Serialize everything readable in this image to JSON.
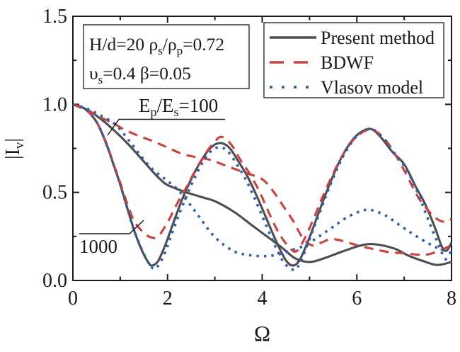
{
  "figure": {
    "xlabel": "Ω",
    "ylabel_parts": "|I_[v]|",
    "annotation_box": {
      "line1": "H/d=20  ρ_[s]/ρ_[p]=0.72",
      "line2": "υ_[s]=0.4  β=0.05"
    },
    "curve_labels": {
      "ep_es_100": "E_[p]/E_[s]=100",
      "ep_es_1000": "1000"
    }
  },
  "legend": {
    "items": [
      {
        "label": "Present method",
        "style": "solid",
        "color": "#4d4d50"
      },
      {
        "label": "BDWF",
        "style": "dashed",
        "color": "#c9423e"
      },
      {
        "label": "Vlasov model",
        "style": "dotted",
        "color": "#3060a8"
      }
    ]
  },
  "colors": {
    "present": "#4d4d50",
    "bdwf": "#c9423e",
    "vlasov": "#3060a8",
    "axis": "#1a1a1a"
  },
  "chart_data": {
    "type": "line",
    "title": "",
    "xlabel": "Ω",
    "ylabel": "|Iv|",
    "xlim": [
      0,
      8
    ],
    "ylim": [
      0,
      1.5
    ],
    "grid": false,
    "legend_position": "top-right-inside",
    "x_major_ticks": [
      0,
      2,
      4,
      6,
      8
    ],
    "x_major_tick_labels": [
      "0",
      "2",
      "4",
      "6",
      "8"
    ],
    "x_minor_ticks": [
      1,
      3,
      5,
      7
    ],
    "y_major_ticks": [
      0,
      0.5,
      1.0,
      1.5
    ],
    "y_major_tick_labels": [
      "0.0",
      "0.5",
      "1.0",
      "1.5"
    ],
    "y_minor_ticks": [
      0.25,
      0.75,
      1.25
    ],
    "series": [
      {
        "name": "Present method",
        "ep_es": "100",
        "style": "solid",
        "color_key": "present",
        "points": [
          [
            0,
            1.0
          ],
          [
            0.3,
            0.97
          ],
          [
            0.6,
            0.915
          ],
          [
            0.9,
            0.845
          ],
          [
            1.2,
            0.765
          ],
          [
            1.5,
            0.675
          ],
          [
            1.75,
            0.6
          ],
          [
            1.95,
            0.55
          ],
          [
            2.1,
            0.53
          ],
          [
            2.4,
            0.5
          ],
          [
            2.7,
            0.475
          ],
          [
            3.0,
            0.45
          ],
          [
            3.4,
            0.39
          ],
          [
            3.8,
            0.31
          ],
          [
            4.1,
            0.25
          ],
          [
            4.4,
            0.19
          ],
          [
            4.7,
            0.125
          ],
          [
            5.0,
            0.105
          ],
          [
            5.3,
            0.125
          ],
          [
            5.7,
            0.165
          ],
          [
            6.1,
            0.2
          ],
          [
            6.4,
            0.205
          ],
          [
            6.8,
            0.18
          ],
          [
            7.1,
            0.14
          ],
          [
            7.4,
            0.11
          ],
          [
            7.7,
            0.088
          ],
          [
            8.0,
            0.105
          ]
        ]
      },
      {
        "name": "Present method",
        "ep_es": "1000",
        "style": "solid",
        "color_key": "present",
        "points": [
          [
            0,
            1.0
          ],
          [
            0.25,
            0.975
          ],
          [
            0.5,
            0.9
          ],
          [
            0.7,
            0.78
          ],
          [
            0.85,
            0.665
          ],
          [
            1.0,
            0.545
          ],
          [
            1.15,
            0.41
          ],
          [
            1.3,
            0.28
          ],
          [
            1.45,
            0.175
          ],
          [
            1.6,
            0.1
          ],
          [
            1.68,
            0.085
          ],
          [
            1.8,
            0.11
          ],
          [
            1.95,
            0.2
          ],
          [
            2.1,
            0.31
          ],
          [
            2.3,
            0.455
          ],
          [
            2.5,
            0.575
          ],
          [
            2.7,
            0.675
          ],
          [
            2.9,
            0.75
          ],
          [
            3.1,
            0.78
          ],
          [
            3.3,
            0.755
          ],
          [
            3.5,
            0.675
          ],
          [
            3.7,
            0.585
          ],
          [
            3.9,
            0.47
          ],
          [
            4.1,
            0.345
          ],
          [
            4.3,
            0.22
          ],
          [
            4.5,
            0.115
          ],
          [
            4.65,
            0.085
          ],
          [
            4.8,
            0.12
          ],
          [
            5.0,
            0.245
          ],
          [
            5.2,
            0.39
          ],
          [
            5.4,
            0.53
          ],
          [
            5.65,
            0.685
          ],
          [
            5.9,
            0.795
          ],
          [
            6.1,
            0.845
          ],
          [
            6.3,
            0.86
          ],
          [
            6.5,
            0.815
          ],
          [
            6.75,
            0.73
          ],
          [
            7.0,
            0.66
          ],
          [
            7.25,
            0.53
          ],
          [
            7.45,
            0.43
          ],
          [
            7.65,
            0.3
          ],
          [
            7.8,
            0.19
          ],
          [
            7.9,
            0.17
          ],
          [
            8.0,
            0.215
          ]
        ]
      },
      {
        "name": "BDWF",
        "ep_es": "100",
        "style": "dashed",
        "color_key": "bdwf",
        "points": [
          [
            0,
            1.0
          ],
          [
            0.3,
            0.965
          ],
          [
            0.6,
            0.925
          ],
          [
            0.9,
            0.885
          ],
          [
            1.1,
            0.855
          ],
          [
            1.4,
            0.82
          ],
          [
            1.7,
            0.79
          ],
          [
            2.0,
            0.755
          ],
          [
            2.3,
            0.72
          ],
          [
            2.6,
            0.7
          ],
          [
            2.9,
            0.685
          ],
          [
            3.2,
            0.655
          ],
          [
            3.6,
            0.615
          ],
          [
            4.0,
            0.575
          ],
          [
            4.25,
            0.5
          ],
          [
            4.45,
            0.42
          ],
          [
            4.65,
            0.34
          ],
          [
            4.85,
            0.245
          ],
          [
            5.05,
            0.2
          ],
          [
            5.25,
            0.215
          ],
          [
            5.45,
            0.235
          ],
          [
            5.7,
            0.225
          ],
          [
            6.0,
            0.2
          ],
          [
            6.35,
            0.178
          ],
          [
            6.7,
            0.16
          ],
          [
            7.0,
            0.155
          ],
          [
            7.3,
            0.146
          ],
          [
            7.5,
            0.148
          ],
          [
            7.75,
            0.17
          ],
          [
            8.0,
            0.2
          ]
        ]
      },
      {
        "name": "BDWF",
        "ep_es": "1000",
        "style": "dashed",
        "color_key": "bdwf",
        "points": [
          [
            0,
            1.0
          ],
          [
            0.25,
            0.975
          ],
          [
            0.5,
            0.9
          ],
          [
            0.7,
            0.785
          ],
          [
            0.85,
            0.67
          ],
          [
            1.0,
            0.555
          ],
          [
            1.15,
            0.435
          ],
          [
            1.3,
            0.335
          ],
          [
            1.5,
            0.27
          ],
          [
            1.65,
            0.245
          ],
          [
            1.8,
            0.25
          ],
          [
            2.0,
            0.33
          ],
          [
            2.2,
            0.435
          ],
          [
            2.4,
            0.53
          ],
          [
            2.6,
            0.63
          ],
          [
            2.8,
            0.72
          ],
          [
            3.0,
            0.79
          ],
          [
            3.15,
            0.815
          ],
          [
            3.35,
            0.77
          ],
          [
            3.55,
            0.68
          ],
          [
            3.75,
            0.6
          ],
          [
            3.95,
            0.5
          ],
          [
            4.15,
            0.38
          ],
          [
            4.35,
            0.27
          ],
          [
            4.55,
            0.195
          ],
          [
            4.72,
            0.165
          ],
          [
            4.9,
            0.24
          ],
          [
            5.1,
            0.36
          ],
          [
            5.3,
            0.49
          ],
          [
            5.55,
            0.635
          ],
          [
            5.8,
            0.755
          ],
          [
            6.05,
            0.83
          ],
          [
            6.3,
            0.855
          ],
          [
            6.55,
            0.815
          ],
          [
            6.8,
            0.72
          ],
          [
            7.05,
            0.6
          ],
          [
            7.3,
            0.47
          ],
          [
            7.55,
            0.385
          ],
          [
            7.75,
            0.34
          ],
          [
            7.9,
            0.335
          ],
          [
            8.0,
            0.35
          ]
        ]
      },
      {
        "name": "Vlasov model",
        "ep_es": "100",
        "style": "dotted",
        "color_key": "vlasov",
        "points": [
          [
            0,
            1.0
          ],
          [
            0.3,
            0.975
          ],
          [
            0.6,
            0.935
          ],
          [
            0.9,
            0.885
          ],
          [
            1.2,
            0.79
          ],
          [
            1.4,
            0.72
          ],
          [
            1.65,
            0.64
          ],
          [
            1.95,
            0.575
          ],
          [
            2.2,
            0.52
          ],
          [
            2.45,
            0.44
          ],
          [
            2.7,
            0.35
          ],
          [
            2.95,
            0.26
          ],
          [
            3.2,
            0.2
          ],
          [
            3.45,
            0.16
          ],
          [
            3.7,
            0.145
          ],
          [
            4.0,
            0.138
          ],
          [
            4.3,
            0.145
          ],
          [
            4.6,
            0.17
          ],
          [
            4.9,
            0.2
          ],
          [
            5.2,
            0.25
          ],
          [
            5.5,
            0.305
          ],
          [
            5.8,
            0.36
          ],
          [
            6.1,
            0.395
          ],
          [
            6.3,
            0.4
          ],
          [
            6.6,
            0.37
          ],
          [
            6.9,
            0.315
          ],
          [
            7.15,
            0.27
          ],
          [
            7.45,
            0.22
          ],
          [
            7.7,
            0.185
          ],
          [
            8.0,
            0.155
          ]
        ]
      },
      {
        "name": "Vlasov model",
        "ep_es": "1000",
        "style": "dotted",
        "color_key": "vlasov",
        "points": [
          [
            0,
            1.0
          ],
          [
            0.25,
            0.975
          ],
          [
            0.5,
            0.9
          ],
          [
            0.7,
            0.78
          ],
          [
            0.85,
            0.665
          ],
          [
            1.0,
            0.545
          ],
          [
            1.15,
            0.41
          ],
          [
            1.3,
            0.28
          ],
          [
            1.5,
            0.15
          ],
          [
            1.65,
            0.08
          ],
          [
            1.75,
            0.068
          ],
          [
            1.9,
            0.13
          ],
          [
            2.05,
            0.235
          ],
          [
            2.25,
            0.38
          ],
          [
            2.45,
            0.51
          ],
          [
            2.65,
            0.625
          ],
          [
            2.85,
            0.715
          ],
          [
            3.05,
            0.755
          ],
          [
            3.25,
            0.74
          ],
          [
            3.45,
            0.665
          ],
          [
            3.65,
            0.575
          ],
          [
            3.85,
            0.46
          ],
          [
            4.05,
            0.335
          ],
          [
            4.25,
            0.21
          ],
          [
            4.45,
            0.105
          ],
          [
            4.62,
            0.065
          ],
          [
            4.72,
            0.065
          ],
          [
            4.85,
            0.13
          ],
          [
            5.05,
            0.27
          ],
          [
            5.25,
            0.41
          ],
          [
            5.45,
            0.55
          ],
          [
            5.7,
            0.7
          ],
          [
            5.95,
            0.805
          ],
          [
            6.15,
            0.85
          ],
          [
            6.35,
            0.855
          ],
          [
            6.55,
            0.81
          ],
          [
            6.8,
            0.72
          ],
          [
            7.05,
            0.63
          ],
          [
            7.3,
            0.49
          ],
          [
            7.5,
            0.35
          ],
          [
            7.7,
            0.22
          ],
          [
            7.85,
            0.13
          ],
          [
            8.0,
            0.1
          ]
        ]
      }
    ]
  }
}
